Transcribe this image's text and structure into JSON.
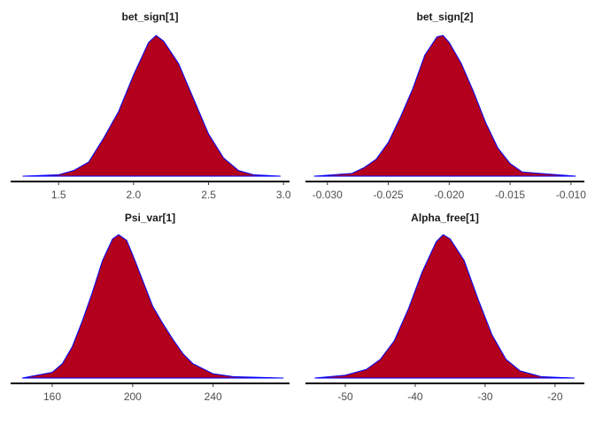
{
  "chart_data": [
    {
      "type": "area",
      "title": "bet_sign[1]",
      "color": "#b2001d",
      "line_color": "#0000ff",
      "x": [
        1.26,
        1.5,
        1.6,
        1.7,
        1.8,
        1.9,
        2.0,
        2.1,
        2.15,
        2.2,
        2.3,
        2.4,
        2.5,
        2.6,
        2.7,
        2.8,
        2.98
      ],
      "values": [
        0,
        0.01,
        0.04,
        0.1,
        0.27,
        0.46,
        0.72,
        0.95,
        1.0,
        0.96,
        0.8,
        0.55,
        0.3,
        0.13,
        0.04,
        0.01,
        0
      ],
      "xlim": [
        1.18,
        3.04
      ],
      "ylim": [
        0,
        1
      ],
      "xticks": [
        1.5,
        {
          "value": 2.0,
          "label": "2.0"
        },
        2.5,
        {
          "value": 3.0,
          "label": "3.0"
        }
      ]
    },
    {
      "type": "area",
      "title": "bet_sign[2]",
      "color": "#b2001d",
      "line_color": "#0000ff",
      "x": [
        -0.0311,
        -0.028,
        -0.027,
        -0.026,
        -0.025,
        -0.024,
        -0.023,
        -0.022,
        -0.021,
        -0.0205,
        -0.02,
        -0.019,
        -0.018,
        -0.017,
        -0.016,
        -0.015,
        -0.014,
        -0.0096
      ],
      "values": [
        0,
        0.02,
        0.06,
        0.12,
        0.24,
        0.42,
        0.62,
        0.86,
        0.99,
        1.0,
        0.95,
        0.8,
        0.6,
        0.38,
        0.2,
        0.09,
        0.03,
        0
      ],
      "xlim": [
        -0.0318,
        -0.0089
      ],
      "ylim": [
        0,
        1
      ],
      "xticks": [
        {
          "value": -0.03,
          "label": "-0.030"
        },
        {
          "value": -0.025,
          "label": "-0.025"
        },
        {
          "value": -0.02,
          "label": "-0.020"
        },
        {
          "value": -0.015,
          "label": "-0.015"
        },
        {
          "value": -0.01,
          "label": "-0.010"
        }
      ]
    },
    {
      "type": "area",
      "title": "Psi_var[1]",
      "color": "#b2001d",
      "line_color": "#0000ff",
      "x": [
        145,
        160,
        165,
        170,
        175,
        180,
        185,
        190,
        193,
        197,
        200,
        205,
        210,
        215,
        220,
        225,
        230,
        240,
        250,
        275
      ],
      "values": [
        0,
        0.04,
        0.1,
        0.22,
        0.4,
        0.6,
        0.82,
        0.97,
        1.0,
        0.96,
        0.86,
        0.68,
        0.5,
        0.38,
        0.27,
        0.17,
        0.1,
        0.03,
        0.01,
        0
      ],
      "xlim": [
        139.3,
        278
      ],
      "ylim": [
        0,
        1
      ],
      "xticks": [
        160,
        200,
        240
      ]
    },
    {
      "type": "area",
      "title": "Alpha_free[1]",
      "color": "#b2001d",
      "line_color": "#0000ff",
      "x": [
        -54.4,
        -50,
        -47,
        -45,
        -43,
        -41,
        -39,
        -37,
        -36,
        -35,
        -33,
        -31,
        -29,
        -27,
        -25,
        -22,
        -17.2
      ],
      "values": [
        0,
        0.02,
        0.06,
        0.13,
        0.26,
        0.48,
        0.74,
        0.95,
        1.0,
        0.97,
        0.82,
        0.55,
        0.3,
        0.13,
        0.05,
        0.01,
        0
      ],
      "xlim": [
        -55.7,
        -15.8
      ],
      "ylim": [
        0,
        1
      ],
      "xticks": [
        -50,
        -40,
        -30,
        -20
      ]
    }
  ]
}
